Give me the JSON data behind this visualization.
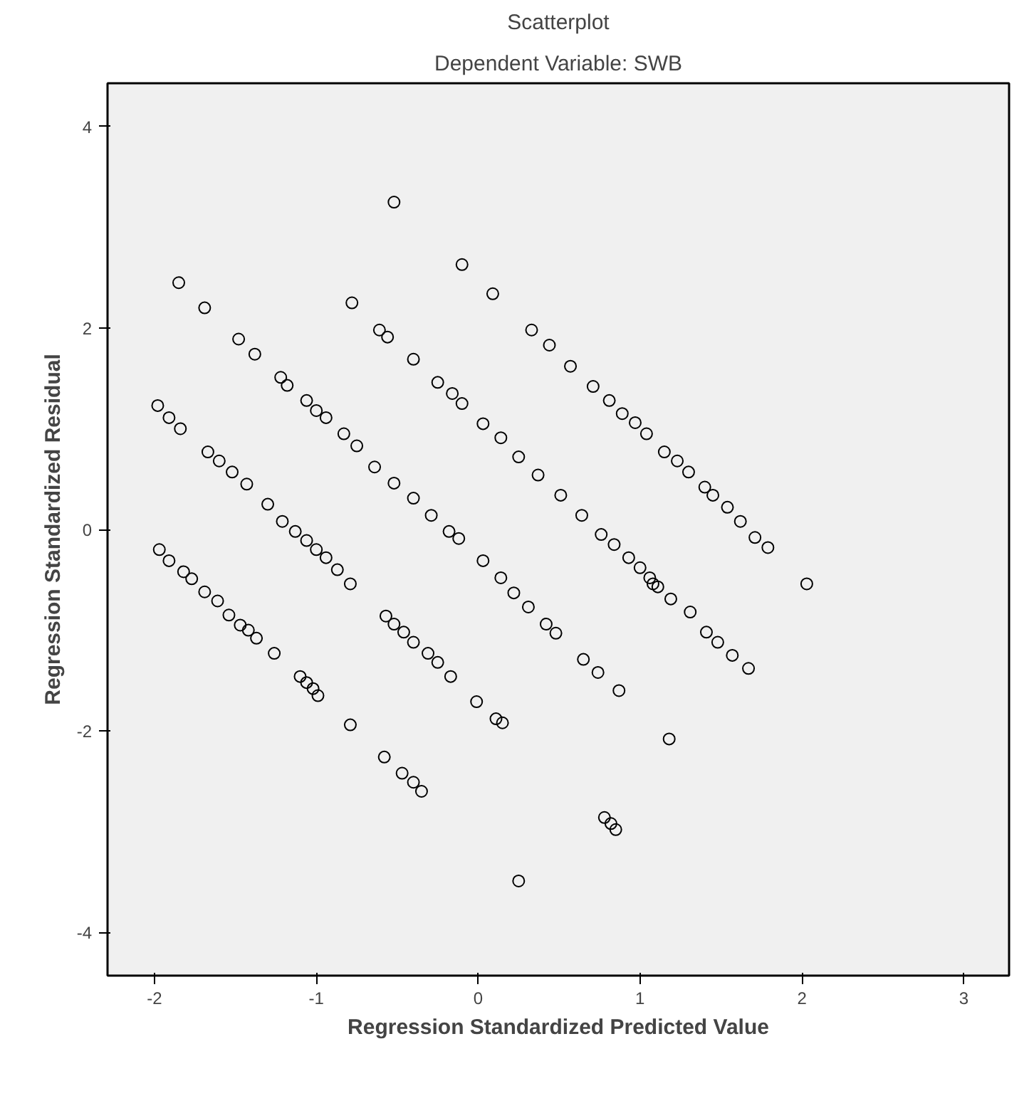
{
  "chart_data": {
    "type": "scatter",
    "title": "Scatterplot",
    "subtitle": "Dependent Variable: SWB",
    "xlabel": "Regression Standardized Predicted Value",
    "ylabel": "Regression Standardized Residual",
    "xlim": [
      -2.29,
      3.28
    ],
    "ylim": [
      -4.43,
      4.43
    ],
    "xticks": [
      -2,
      -1,
      0,
      1,
      2,
      3
    ],
    "yticks": [
      4,
      2,
      0,
      -2,
      -4
    ],
    "grid": false,
    "marker": "circle",
    "x": [
      -1.97,
      -1.91,
      -1.82,
      -1.77,
      -1.69,
      -1.61,
      -1.54,
      -1.47,
      -1.42,
      -1.37,
      -1.26,
      -1.1,
      -1.06,
      -1.02,
      -0.99,
      -0.79,
      -0.57,
      -0.52,
      -0.46,
      -0.4,
      -0.31,
      -0.25,
      -0.17,
      -0.01,
      0.11,
      0.15,
      0.65,
      0.74,
      0.87,
      1.18,
      -0.58,
      -0.47,
      -0.4,
      -0.35,
      0.25,
      0.78,
      0.82,
      0.85,
      -1.21,
      -1.13,
      -1.06,
      -1.0,
      -0.94,
      -0.87,
      -0.79,
      -0.29,
      -0.12,
      0.03,
      0.14,
      0.22,
      0.31,
      0.42,
      0.48,
      -0.52,
      -1.85,
      -1.69,
      -1.48,
      -1.38,
      -1.22,
      -1.18,
      -1.06,
      -1.0,
      -0.94,
      -0.83,
      -0.75,
      -0.64,
      -0.52,
      -0.4,
      -0.18,
      -1.98,
      -1.91,
      -1.84,
      -1.67,
      -1.6,
      -1.52,
      -1.43,
      -1.3,
      -0.78,
      -0.61,
      -0.56,
      -0.4,
      -0.25,
      -0.16,
      -0.1,
      0.03,
      0.14,
      0.25,
      0.37,
      0.51,
      -0.1,
      0.09,
      0.33,
      0.44,
      0.57,
      0.71,
      0.81,
      0.89,
      0.97,
      1.04,
      1.15,
      1.23,
      1.3,
      1.4,
      1.45,
      1.54,
      1.62,
      1.71,
      1.79,
      2.03,
      0.64,
      0.76,
      0.84,
      0.93,
      1.0,
      1.06,
      1.08,
      1.11,
      1.19,
      1.31,
      1.41,
      1.48,
      1.57,
      1.67
    ],
    "series": [
      {
        "color": "#000000",
        "values": [
          -0.2,
          -0.31,
          -0.42,
          -0.49,
          -0.62,
          -0.71,
          -0.85,
          -0.95,
          -1.0,
          -1.08,
          -1.23,
          -1.46,
          -1.52,
          -1.58,
          -1.65,
          -1.94,
          -0.86,
          -0.94,
          -1.02,
          -1.12,
          -1.23,
          -1.32,
          -1.46,
          -1.71,
          -1.88,
          -1.92,
          -1.29,
          -1.42,
          -1.6,
          -2.08,
          -2.26,
          -2.42,
          -2.51,
          -2.6,
          -3.49,
          -2.86,
          -2.92,
          -2.98,
          0.08,
          -0.02,
          -0.11,
          -0.2,
          -0.28,
          -0.4,
          -0.54,
          0.14,
          -0.09,
          -0.31,
          -0.48,
          -0.63,
          -0.77,
          -0.94,
          -1.03,
          3.25,
          2.45,
          2.2,
          1.89,
          1.74,
          1.51,
          1.43,
          1.28,
          1.18,
          1.11,
          0.95,
          0.83,
          0.62,
          0.46,
          0.31,
          -0.02,
          1.23,
          1.11,
          1.0,
          0.77,
          0.68,
          0.57,
          0.45,
          0.25,
          2.25,
          1.98,
          1.91,
          1.69,
          1.46,
          1.35,
          1.25,
          1.05,
          0.91,
          0.72,
          0.54,
          0.34,
          2.63,
          2.34,
          1.98,
          1.83,
          1.62,
          1.42,
          1.28,
          1.15,
          1.06,
          0.95,
          0.77,
          0.68,
          0.57,
          0.42,
          0.34,
          0.22,
          0.08,
          -0.08,
          -0.18,
          -0.54,
          0.14,
          -0.05,
          -0.15,
          -0.28,
          -0.38,
          -0.48,
          -0.54,
          -0.57,
          -0.69,
          -0.82,
          -1.02,
          -1.12,
          -1.25,
          -1.38
        ]
      }
    ]
  }
}
